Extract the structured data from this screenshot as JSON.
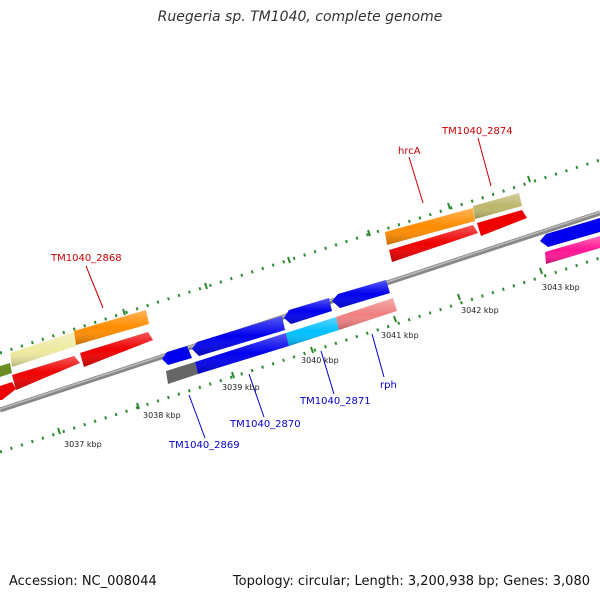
{
  "title": "Ruegeria sp. TM1040, complete genome",
  "footer": {
    "accession": "Accession: NC_008044",
    "summary": "Topology: circular; Length: 3,200,938 bp; Genes: 3,080"
  },
  "colors": {
    "backbone": "#8a8a8a",
    "tick_marks": "#2e8b2e",
    "label_forward": "#cc0000",
    "label_reverse": "#0000cc"
  },
  "ticks": [
    "3037 kbp",
    "3038 kbp",
    "3039 kbp",
    "3040 kbp",
    "3041 kbp",
    "3042 kbp",
    "3043 kbp"
  ],
  "gene_labels": [
    {
      "text": "TM1040_2868",
      "strand": "forward"
    },
    {
      "text": "hrcA",
      "strand": "forward"
    },
    {
      "text": "TM1040_2874",
      "strand": "forward"
    },
    {
      "text": "TM1040_2869",
      "strand": "reverse"
    },
    {
      "text": "TM1040_2870",
      "strand": "reverse"
    },
    {
      "text": "TM1040_2871",
      "strand": "reverse"
    },
    {
      "text": "rph",
      "strand": "reverse"
    }
  ]
}
